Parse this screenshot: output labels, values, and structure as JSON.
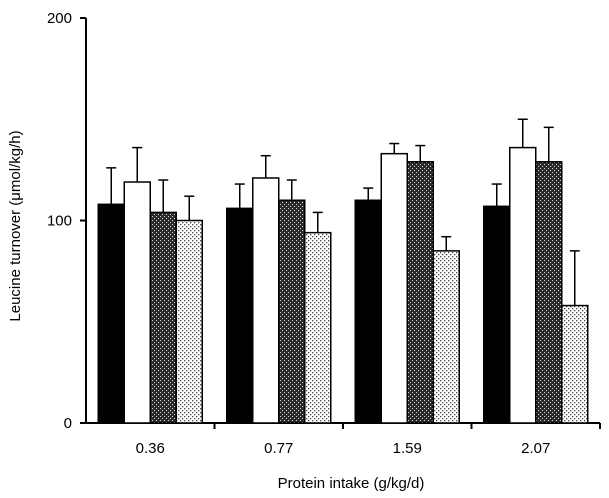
{
  "chart_data": {
    "type": "bar",
    "title": "",
    "xlabel": "Protein intake (g/kg/d)",
    "ylabel": "Leucine turnover (μmol/kg/h)",
    "ylim": [
      0,
      200
    ],
    "yticks": [
      0,
      100,
      200
    ],
    "categories": [
      "0.36",
      "0.77",
      "1.59",
      "2.07"
    ],
    "series": [
      {
        "fill": "solid-black",
        "values": [
          108,
          106,
          110,
          107
        ],
        "errors": [
          18,
          12,
          6,
          11
        ]
      },
      {
        "fill": "white",
        "values": [
          119,
          121,
          133,
          136
        ],
        "errors": [
          17,
          11,
          5,
          14
        ]
      },
      {
        "fill": "dense-dots",
        "values": [
          104,
          110,
          129,
          129
        ],
        "errors": [
          16,
          10,
          8,
          17
        ]
      },
      {
        "fill": "light-dots",
        "values": [
          100,
          94,
          85,
          58
        ],
        "errors": [
          12,
          10,
          7,
          27
        ]
      }
    ],
    "grid": false,
    "legend": "none"
  }
}
